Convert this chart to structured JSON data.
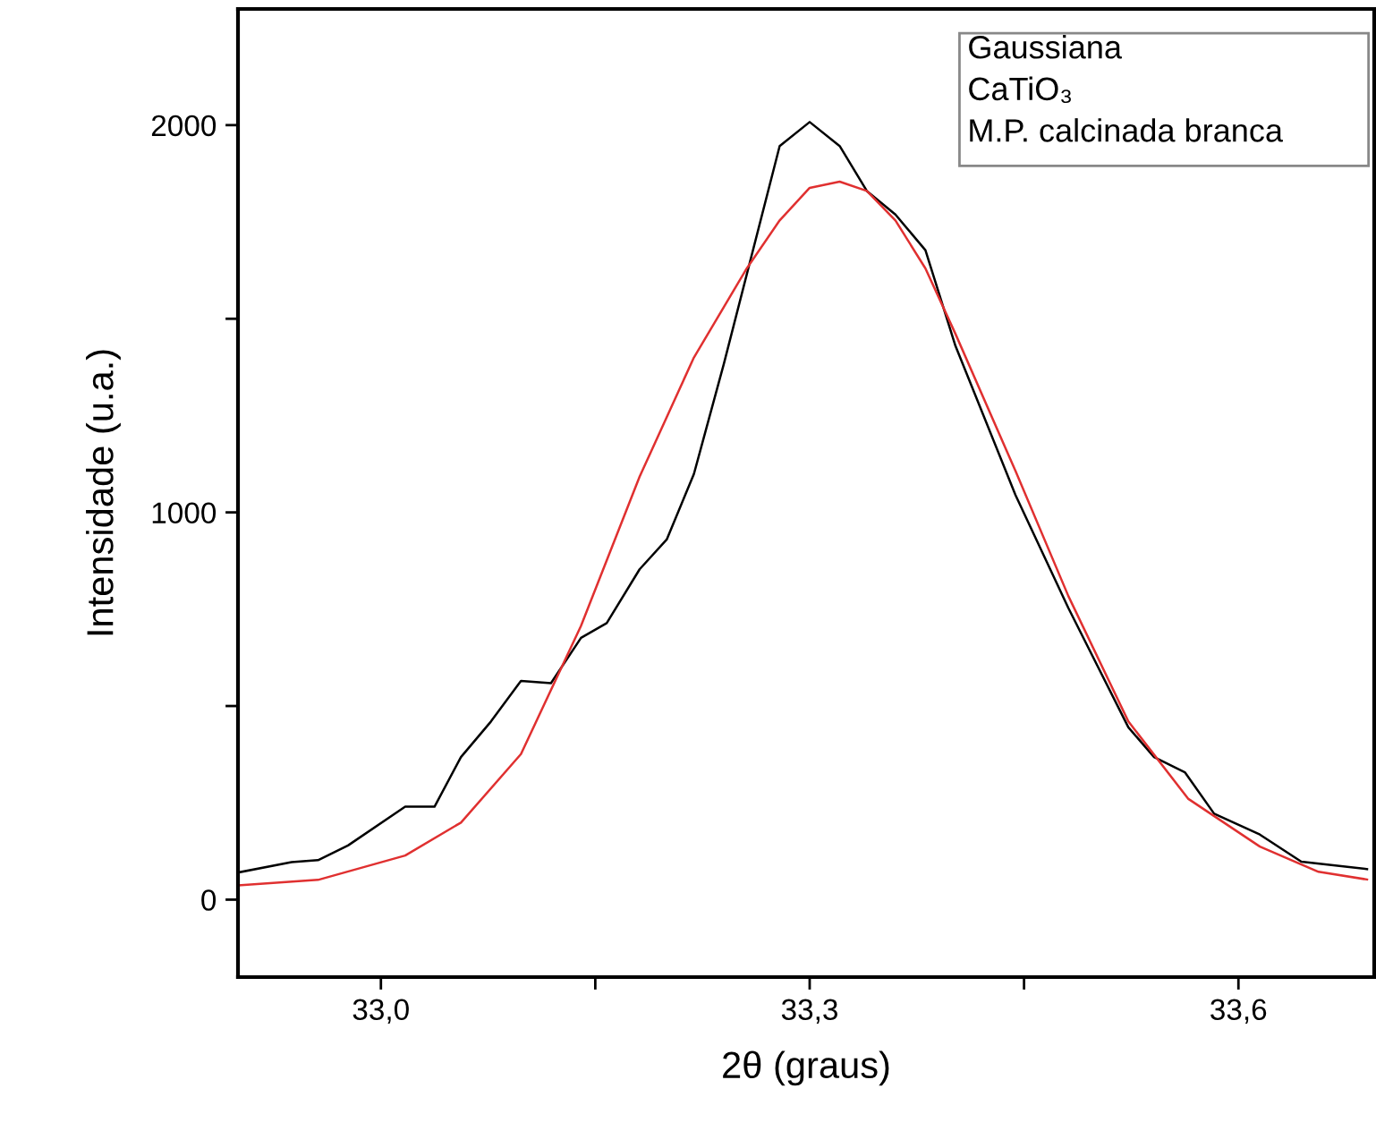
{
  "chart_data": {
    "type": "line",
    "xlabel": "2θ (graus)",
    "ylabel": "Intensidade (u.a.)",
    "annotations": [
      "Gaussiana",
      "CaTiO₃",
      "M.P. calcinada branca"
    ],
    "xlim": [
      32.9,
      33.695
    ],
    "ylim": [
      -200,
      2300
    ],
    "xticks": [
      {
        "value": 33.0,
        "label": "33,0"
      },
      {
        "value": 33.15,
        "label": null
      },
      {
        "value": 33.3,
        "label": "33,3"
      },
      {
        "value": 33.45,
        "label": null
      },
      {
        "value": 33.6,
        "label": "33,6"
      }
    ],
    "yticks": [
      0,
      {
        "value": 500,
        "label": null
      },
      1000,
      {
        "value": 1500,
        "label": null
      },
      2000
    ],
    "grid": false,
    "legend": false,
    "marker": "none",
    "line_style": "solid",
    "series": [
      {
        "color": "#000000",
        "x": [
          32.9,
          32.9375,
          32.956,
          32.977,
          33.017,
          33.0375,
          33.056,
          33.077,
          33.098,
          33.119,
          33.14,
          33.158,
          33.181,
          33.2,
          33.219,
          33.24,
          33.279,
          33.3,
          33.321,
          33.34,
          33.36,
          33.381,
          33.402,
          33.444,
          33.481,
          33.523,
          33.541,
          33.5625,
          33.583,
          33.615,
          33.644,
          33.69
        ],
        "values": [
          70,
          97,
          102,
          140,
          240,
          240,
          368,
          460,
          565,
          559,
          676,
          714,
          853,
          930,
          1099,
          1384,
          1946,
          2008,
          1946,
          1830,
          1769,
          1677,
          1430,
          1045,
          753,
          445,
          368,
          329,
          222,
          168,
          98,
          79
        ]
      },
      {
        "color": "#e03030",
        "x": [
          32.9,
          32.956,
          33.017,
          33.056,
          33.098,
          33.14,
          33.181,
          33.219,
          33.256,
          33.279,
          33.3,
          33.321,
          33.34,
          33.36,
          33.381,
          33.402,
          33.444,
          33.481,
          33.523,
          33.565,
          33.615,
          33.656,
          33.69
        ],
        "values": [
          37,
          51,
          114,
          199,
          376,
          707,
          1092,
          1400,
          1630,
          1754,
          1838,
          1854,
          1830,
          1754,
          1630,
          1461,
          1107,
          784,
          460,
          260,
          137,
          72,
          52
        ]
      }
    ]
  }
}
